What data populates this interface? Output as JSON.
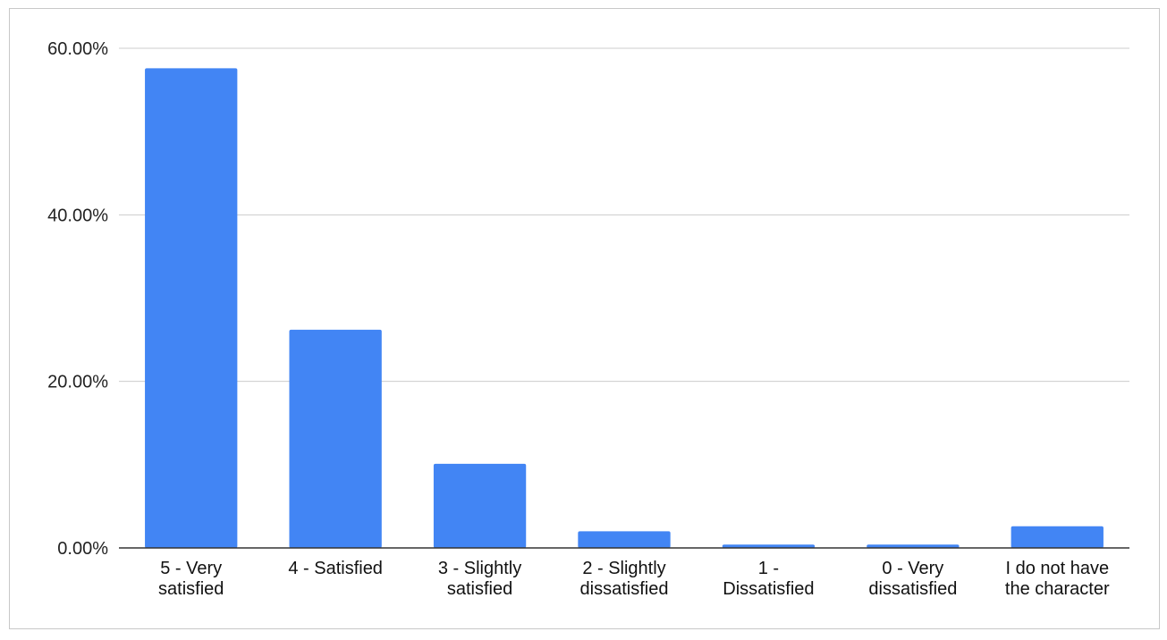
{
  "chart_data": {
    "type": "bar",
    "title": "",
    "xlabel": "",
    "ylabel": "",
    "categories": [
      [
        "5 - Very",
        "satisfied"
      ],
      [
        "4 - Satisfied"
      ],
      [
        "3 - Slightly",
        "satisfied"
      ],
      [
        "2 - Slightly",
        "dissatisfied"
      ],
      [
        "1 -",
        "Dissatisfied"
      ],
      [
        "0 - Very",
        "dissatisfied"
      ],
      [
        "I do not have",
        "the character"
      ]
    ],
    "values": [
      57.6,
      26.2,
      10.1,
      2.0,
      0.4,
      0.4,
      2.6
    ],
    "ylim": [
      0,
      60
    ],
    "yticks": [
      {
        "value": 0,
        "label": "0.00%"
      },
      {
        "value": 20,
        "label": "20.00%"
      },
      {
        "value": 40,
        "label": "40.00%"
      },
      {
        "value": 60,
        "label": "60.00%"
      }
    ],
    "grid": true,
    "legend": "none",
    "colors": {
      "bar": "#4285f4",
      "grid": "#cccccc",
      "axis": "#333333"
    }
  }
}
